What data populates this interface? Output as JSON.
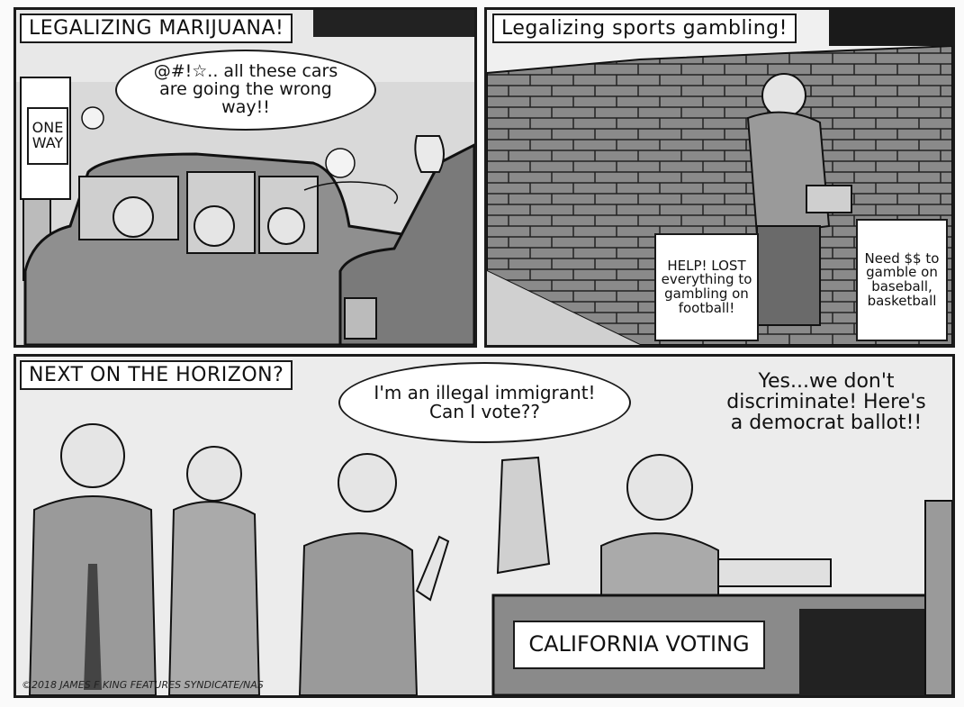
{
  "panels": [
    {
      "caption": "LEGALIZING MARIJUANA!",
      "bubble": "@#!☆.. all these cars are going the wrong way!!",
      "sign_line1": "ONE",
      "sign_line2": "WAY"
    },
    {
      "caption": "Legalizing sports gambling!",
      "sign_left": "HELP! LOST everything to gambling on football!",
      "sign_right": "Need $$ to gamble on baseball, basketball"
    },
    {
      "caption": "NEXT ON THE HORIZON?",
      "bubble_left": "I'm an illegal immigrant! Can I vote??",
      "speech_right": "Yes...we don't discriminate! Here's a democrat ballot!!",
      "desk_sign": "CALIFORNIA VOTING",
      "credit": "©2018 JAMES F KING FEATURES SYNDICATE/NAS"
    }
  ]
}
